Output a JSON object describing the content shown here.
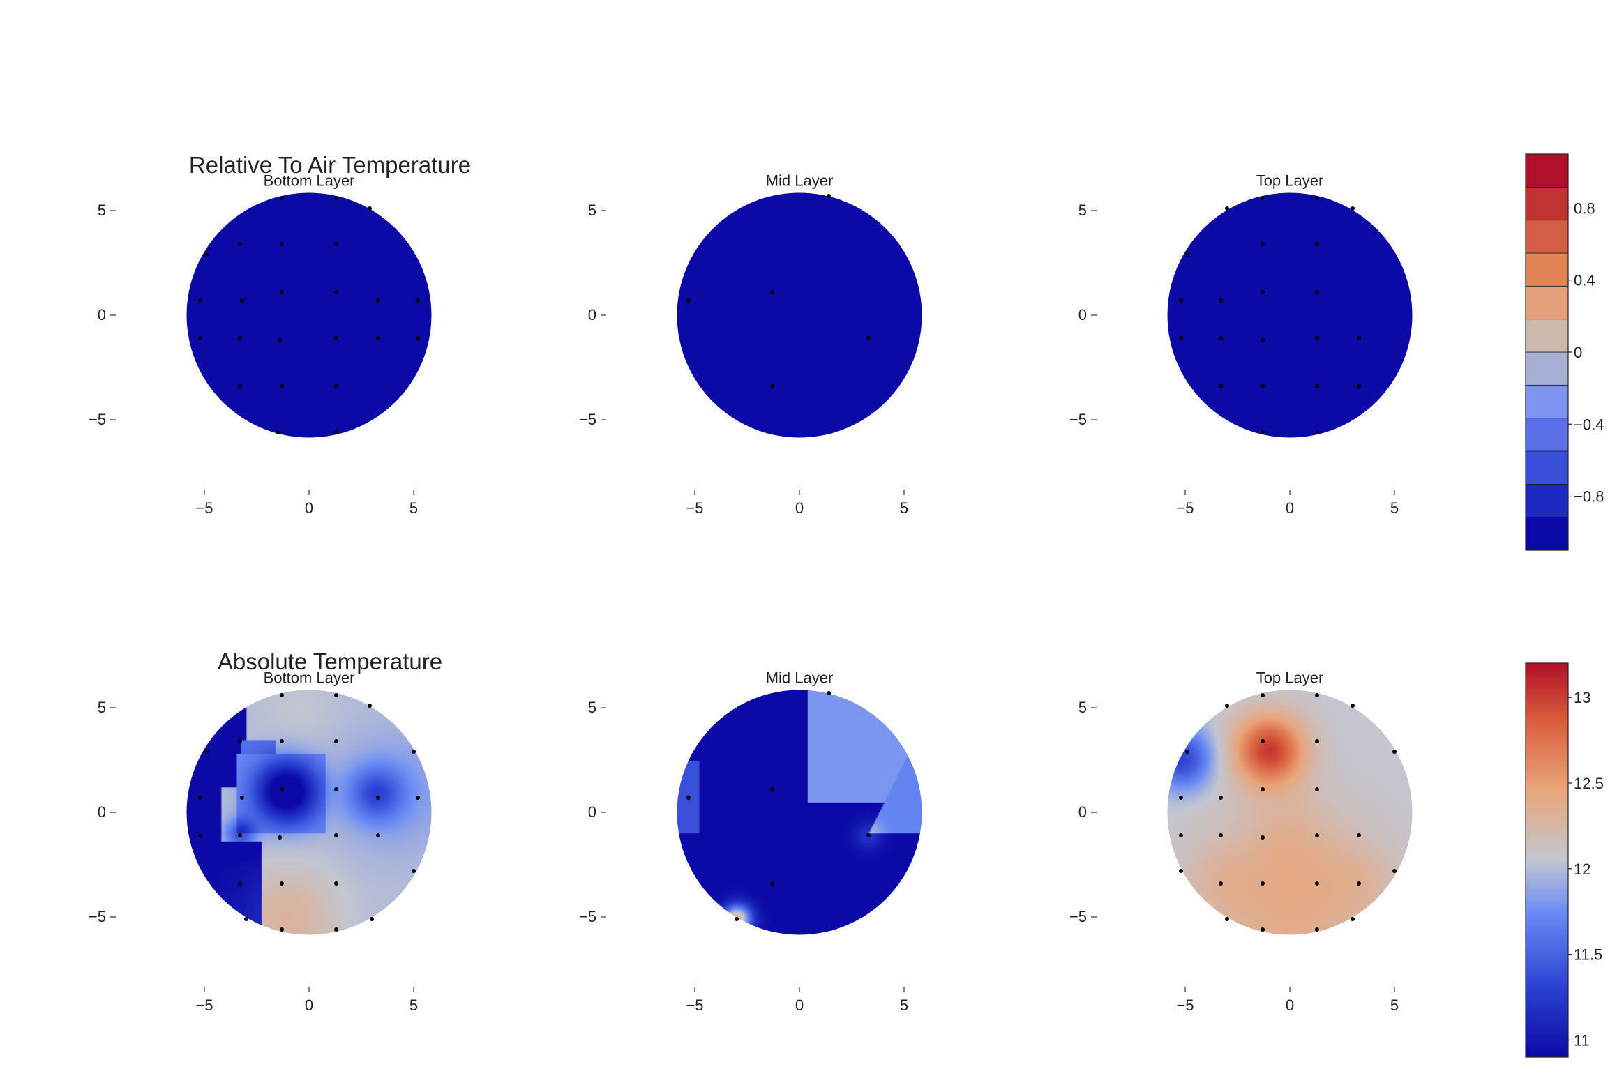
{
  "chart_data": {
    "type": "heatmap",
    "rows": [
      {
        "title": "Relative To Air Temperature",
        "colorbar": {
          "kind": "discrete",
          "range": [
            -1.1,
            1.1
          ],
          "levels": 11,
          "colors": [
            "#0c0aa6",
            "#1e28c2",
            "#3a4fd9",
            "#5b70e8",
            "#7f94f2",
            "#a7b0d4",
            "#cdb9ab",
            "#e3a07a",
            "#e08456",
            "#d35e46",
            "#bf3333",
            "#b1102b"
          ],
          "ticks": [
            {
              "value": 0.8,
              "label": "0.8"
            },
            {
              "value": 0.4,
              "label": "0.4"
            },
            {
              "value": 0,
              "label": "0"
            },
            {
              "value": -0.4,
              "label": "−0.4"
            },
            {
              "value": -0.8,
              "label": "−0.8"
            }
          ]
        },
        "panels": [
          {
            "title": "Bottom Layer",
            "field": "uniform_min",
            "points": [
              [
                -1.3,
                5.6
              ],
              [
                1.3,
                5.6
              ],
              [
                2.9,
                5.1
              ],
              [
                -4.9,
                2.9
              ],
              [
                -3.3,
                3.4
              ],
              [
                -1.3,
                3.4
              ],
              [
                1.3,
                3.4
              ],
              [
                -5.2,
                0.7
              ],
              [
                -3.2,
                0.7
              ],
              [
                -1.3,
                1.1
              ],
              [
                1.3,
                1.1
              ],
              [
                3.3,
                0.7
              ],
              [
                5.2,
                0.7
              ],
              [
                -5.2,
                -1.1
              ],
              [
                -3.3,
                -1.1
              ],
              [
                -1.4,
                -1.2
              ],
              [
                1.3,
                -1.1
              ],
              [
                3.3,
                -1.1
              ],
              [
                5.2,
                -1.1
              ],
              [
                -3.3,
                -3.4
              ],
              [
                -1.3,
                -3.4
              ],
              [
                1.3,
                -3.4
              ],
              [
                -1.5,
                -5.6
              ],
              [
                1.3,
                -5.6
              ]
            ]
          },
          {
            "title": "Mid Layer",
            "field": "uniform_min",
            "points": [
              [
                1.4,
                5.7
              ],
              [
                -5.3,
                0.7
              ],
              [
                -1.3,
                1.1
              ],
              [
                3.3,
                -1.1
              ],
              [
                -1.3,
                -3.4
              ]
            ]
          },
          {
            "title": "Top Layer",
            "field": "uniform_min",
            "points": [
              [
                -3.0,
                5.1
              ],
              [
                -1.3,
                5.6
              ],
              [
                1.3,
                5.6
              ],
              [
                3.0,
                5.1
              ],
              [
                -4.9,
                2.9
              ],
              [
                -1.3,
                3.4
              ],
              [
                1.3,
                3.4
              ],
              [
                -5.2,
                0.7
              ],
              [
                -3.3,
                0.7
              ],
              [
                -1.3,
                1.1
              ],
              [
                1.3,
                1.1
              ],
              [
                -5.2,
                -1.1
              ],
              [
                -3.3,
                -1.1
              ],
              [
                -1.3,
                -1.2
              ],
              [
                1.3,
                -1.1
              ],
              [
                3.3,
                -1.1
              ],
              [
                -3.3,
                -3.4
              ],
              [
                -1.3,
                -3.4
              ],
              [
                1.3,
                -3.4
              ],
              [
                3.3,
                -3.4
              ],
              [
                -1.3,
                -5.6
              ],
              [
                1.3,
                -5.6
              ]
            ]
          }
        ]
      },
      {
        "title": "Absolute Temperature",
        "colorbar": {
          "kind": "continuous",
          "range": [
            10.9,
            13.2
          ],
          "colors": [
            "#0c0aa6",
            "#2a3fd1",
            "#6b8cf5",
            "#c4c6d0",
            "#e9a57a",
            "#d85a3a",
            "#b1102b"
          ],
          "stops": [
            0,
            0.17,
            0.37,
            0.5,
            0.68,
            0.86,
            1
          ],
          "ticks": [
            {
              "value": 13,
              "label": "13"
            },
            {
              "value": 12.5,
              "label": "12.5"
            },
            {
              "value": 12,
              "label": "12"
            },
            {
              "value": 11.5,
              "label": "11.5"
            },
            {
              "value": 11,
              "label": "11"
            }
          ]
        },
        "panels": [
          {
            "title": "Bottom Layer",
            "field": "bottom_abs",
            "points": [
              [
                -1.3,
                5.6
              ],
              [
                1.3,
                5.6
              ],
              [
                2.9,
                5.1
              ],
              [
                -4.9,
                2.9
              ],
              [
                -3.3,
                3.4
              ],
              [
                -1.3,
                3.4
              ],
              [
                1.3,
                3.4
              ],
              [
                5.0,
                2.9
              ],
              [
                -5.2,
                0.7
              ],
              [
                -3.2,
                0.7
              ],
              [
                -1.3,
                1.1
              ],
              [
                1.3,
                1.1
              ],
              [
                3.3,
                0.7
              ],
              [
                5.2,
                0.7
              ],
              [
                -5.2,
                -1.1
              ],
              [
                -3.3,
                -1.1
              ],
              [
                -1.4,
                -1.2
              ],
              [
                1.3,
                -1.1
              ],
              [
                3.3,
                -1.1
              ],
              [
                5.0,
                -2.8
              ],
              [
                -3.3,
                -3.4
              ],
              [
                -1.3,
                -3.4
              ],
              [
                1.3,
                -3.4
              ],
              [
                -3.0,
                -5.1
              ],
              [
                -1.3,
                -5.6
              ],
              [
                1.3,
                -5.6
              ],
              [
                3.0,
                -5.1
              ]
            ]
          },
          {
            "title": "Mid Layer",
            "field": "mid_abs",
            "points": [
              [
                1.4,
                5.7
              ],
              [
                -5.3,
                0.7
              ],
              [
                -1.3,
                1.1
              ],
              [
                3.3,
                -1.1
              ],
              [
                -1.3,
                -3.4
              ],
              [
                -3.0,
                -5.1
              ]
            ]
          },
          {
            "title": "Top Layer",
            "field": "top_abs",
            "points": [
              [
                -3.0,
                5.1
              ],
              [
                -1.3,
                5.6
              ],
              [
                1.3,
                5.6
              ],
              [
                3.0,
                5.1
              ],
              [
                -4.9,
                2.9
              ],
              [
                -1.3,
                3.4
              ],
              [
                1.3,
                3.4
              ],
              [
                5.0,
                2.9
              ],
              [
                -5.2,
                0.7
              ],
              [
                -3.3,
                0.7
              ],
              [
                -1.3,
                1.1
              ],
              [
                1.3,
                1.1
              ],
              [
                -5.2,
                -1.1
              ],
              [
                -3.3,
                -1.1
              ],
              [
                -1.3,
                -1.2
              ],
              [
                1.3,
                -1.1
              ],
              [
                3.3,
                -1.1
              ],
              [
                -5.2,
                -2.8
              ],
              [
                -3.3,
                -3.4
              ],
              [
                -1.3,
                -3.4
              ],
              [
                1.3,
                -3.4
              ],
              [
                3.3,
                -3.4
              ],
              [
                5.0,
                -2.8
              ],
              [
                -3.0,
                -5.1
              ],
              [
                -1.3,
                -5.6
              ],
              [
                1.3,
                -5.6
              ],
              [
                3.0,
                -5.1
              ]
            ]
          }
        ]
      }
    ],
    "axes": {
      "xlim": [
        -6,
        6
      ],
      "ylim": [
        -6,
        6
      ],
      "ticks": [
        -5,
        0,
        5
      ],
      "tick_labels": [
        "−5",
        "0",
        "5"
      ],
      "disc_radius": 5.85
    }
  }
}
